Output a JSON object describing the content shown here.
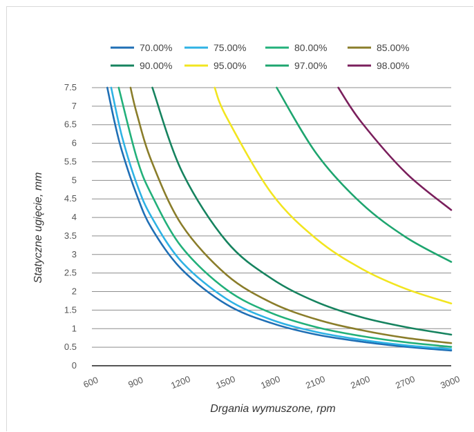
{
  "chart_data": {
    "type": "line",
    "xlabel": "Drgania wymuszone, rpm",
    "ylabel": "Statyczne ugięcie, mm",
    "xlim": [
      600,
      3000
    ],
    "ylim": [
      0,
      7.5
    ],
    "x_ticks": [
      "600",
      "900",
      "1200",
      "1500",
      "1800",
      "2100",
      "2400",
      "2700",
      "3000"
    ],
    "y_ticks": [
      "0",
      "0.5",
      "1",
      "1.5",
      "2",
      "2.5",
      "3",
      "3.5",
      "4",
      "4.5",
      "5",
      "5.5",
      "6",
      "6.5",
      "7",
      "7.5"
    ],
    "grid": "horizontal",
    "legend_position": "top",
    "series": [
      {
        "name": "70.00%",
        "color": "#1f6fb5",
        "x": [
          703,
          750,
          800,
          900,
          1000,
          1200,
          1500,
          1800,
          2100,
          2400,
          2700,
          3000
        ],
        "y": [
          7.5,
          6.6,
          5.8,
          4.6,
          3.7,
          2.6,
          1.65,
          1.15,
          0.84,
          0.65,
          0.51,
          0.41
        ]
      },
      {
        "name": "75.00%",
        "color": "#2eb2e4",
        "x": [
          729,
          800,
          900,
          1000,
          1200,
          1500,
          1800,
          2100,
          2400,
          2700,
          3000
        ],
        "y": [
          7.5,
          6.2,
          4.9,
          4.0,
          2.8,
          1.8,
          1.24,
          0.91,
          0.7,
          0.55,
          0.45
        ]
      },
      {
        "name": "80.00%",
        "color": "#22b07a",
        "x": [
          779,
          900,
          1000,
          1200,
          1500,
          1800,
          2100,
          2400,
          2700,
          3000
        ],
        "y": [
          7.5,
          5.6,
          4.6,
          3.2,
          2.05,
          1.42,
          1.04,
          0.8,
          0.63,
          0.51
        ]
      },
      {
        "name": "85.00%",
        "color": "#8a7d2a",
        "x": [
          858,
          900,
          1000,
          1200,
          1500,
          1800,
          2100,
          2400,
          2700,
          3000
        ],
        "y": [
          7.5,
          6.8,
          5.5,
          3.8,
          2.45,
          1.7,
          1.25,
          0.96,
          0.75,
          0.61
        ]
      },
      {
        "name": "90.00%",
        "color": "#16835f",
        "x": [
          1004,
          1200,
          1500,
          1800,
          2100,
          2400,
          2700,
          3000
        ],
        "y": [
          7.5,
          5.25,
          3.35,
          2.35,
          1.72,
          1.31,
          1.04,
          0.84
        ]
      },
      {
        "name": "95.00%",
        "color": "#f2e51f",
        "x": [
          1420,
          1500,
          1800,
          2100,
          2400,
          2700,
          3000
        ],
        "y": [
          7.5,
          6.7,
          4.65,
          3.42,
          2.62,
          2.07,
          1.68
        ]
      },
      {
        "name": "97.00%",
        "color": "#1ea56f",
        "x": [
          1834,
          2100,
          2400,
          2700,
          3000
        ],
        "y": [
          7.5,
          5.72,
          4.38,
          3.46,
          2.8
        ]
      },
      {
        "name": "98.00%",
        "color": "#7a1f5c",
        "x": [
          2246,
          2400,
          2700,
          3000
        ],
        "y": [
          7.5,
          6.57,
          5.19,
          4.2
        ]
      }
    ]
  }
}
